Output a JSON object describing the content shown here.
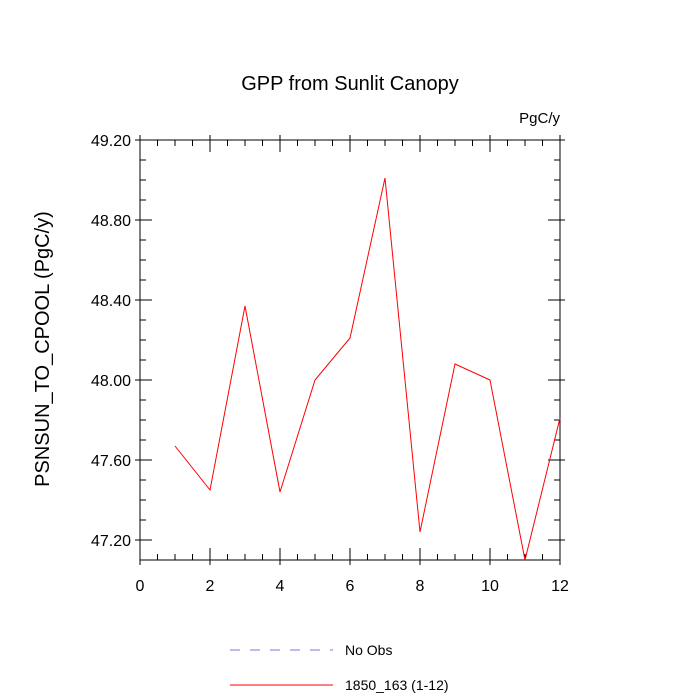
{
  "chart_data": {
    "type": "line",
    "title": "GPP from Sunlit Canopy",
    "units": "PgC/y",
    "ylabel": "PSNSUN_TO_CPOOL  (PgC/y)",
    "xlabel": "",
    "xlim": [
      0,
      12
    ],
    "ylim": [
      47.1,
      49.2
    ],
    "xticks": [
      0,
      2,
      4,
      6,
      8,
      10,
      12
    ],
    "xtick_labels": [
      "0",
      "2",
      "4",
      "6",
      "8",
      "10",
      "12"
    ],
    "yticks": [
      47.2,
      47.6,
      48.0,
      48.4,
      48.8,
      49.2
    ],
    "ytick_labels": [
      "47.20",
      "47.60",
      "48.00",
      "48.40",
      "48.80",
      "49.20"
    ],
    "grid": false,
    "legend_position": "bottom",
    "series": [
      {
        "name": "No Obs",
        "color": "#7777dd",
        "style": "dashed",
        "x": [],
        "y": []
      },
      {
        "name": "1850_163 (1-12)",
        "color": "#ff0000",
        "style": "solid",
        "x": [
          1,
          2,
          3,
          4,
          5,
          6,
          7,
          8,
          9,
          10,
          11,
          12
        ],
        "y": [
          47.67,
          47.45,
          48.37,
          47.44,
          48.0,
          48.21,
          49.01,
          47.24,
          48.08,
          48.0,
          47.1,
          47.81
        ]
      }
    ]
  }
}
